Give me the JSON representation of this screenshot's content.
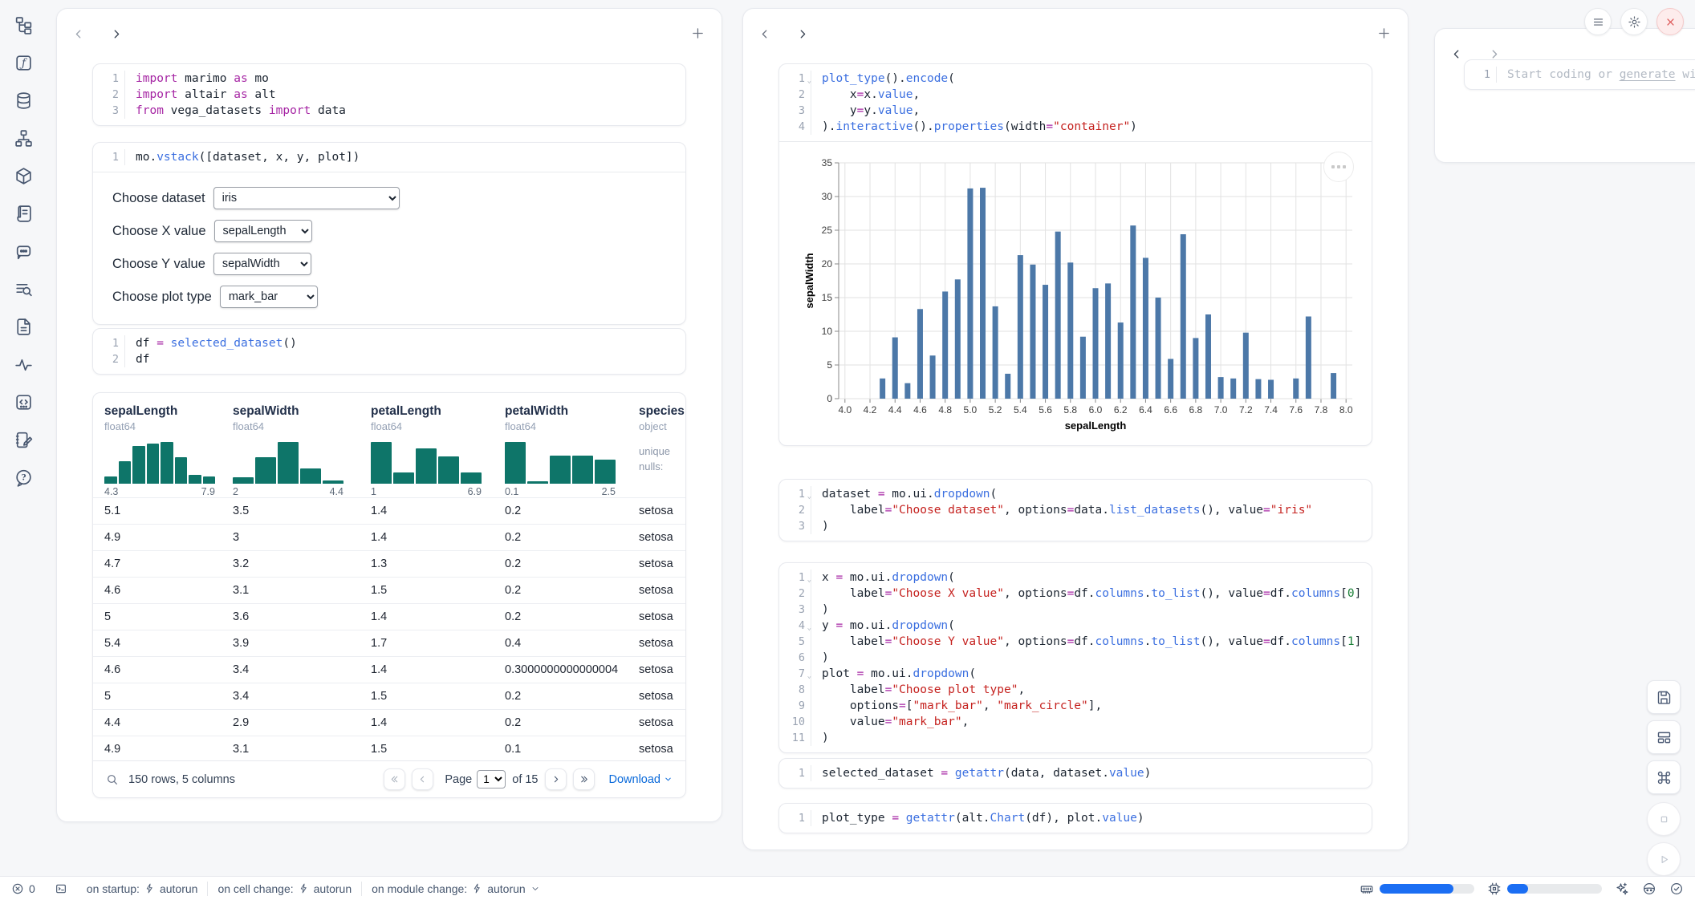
{
  "colors": {
    "hist_teal": "#0e7569",
    "chart_bar_blue": "#4c78a8",
    "link_blue": "#0969da",
    "progress_blue": "#1b6ef3"
  },
  "sidebar": {
    "icons": [
      "file-explorer",
      "functions",
      "datasources",
      "dependency-graph",
      "packages",
      "logs",
      "ai-chat",
      "outline-search",
      "documentation",
      "tracing",
      "snippets",
      "scratchpad",
      "help"
    ]
  },
  "left_panel": {
    "cells": [
      {
        "lines": [
          "import marimo as mo",
          "import altair as alt",
          "from vega_datasets import data"
        ],
        "folds": []
      },
      {
        "lines": [
          "mo.vstack([dataset, x, y, plot])"
        ],
        "folds": []
      },
      {
        "lines": [
          "df = selected_dataset()",
          "df"
        ],
        "folds": []
      }
    ],
    "controls": [
      {
        "label": "Choose dataset",
        "value": "iris",
        "wide": true
      },
      {
        "label": "Choose X value",
        "value": "sepalLength",
        "wide": false
      },
      {
        "label": "Choose Y value",
        "value": "sepalWidth",
        "wide": false
      },
      {
        "label": "Choose plot type",
        "value": "mark_bar",
        "wide": false
      }
    ],
    "table": {
      "columns": [
        {
          "name": "sepalLength",
          "dtype": "float64",
          "hist": [
            0.16,
            0.5,
            0.86,
            0.9,
            0.94,
            0.6,
            0.2,
            0.16
          ],
          "min": "4.3",
          "max": "7.9"
        },
        {
          "name": "sepalWidth",
          "dtype": "float64",
          "hist": [
            0.15,
            0.6,
            0.95,
            0.35,
            0.07
          ],
          "min": "2",
          "max": "4.4"
        },
        {
          "name": "petalLength",
          "dtype": "float64",
          "hist": [
            0.95,
            0.25,
            0.8,
            0.62,
            0.25
          ],
          "min": "1",
          "max": "6.9"
        },
        {
          "name": "petalWidth",
          "dtype": "float64",
          "hist": [
            0.92,
            0.05,
            0.62,
            0.62,
            0.52
          ],
          "min": "0.1",
          "max": "2.5"
        },
        {
          "name": "species",
          "dtype": "object",
          "meta": [
            "unique",
            "nulls:"
          ]
        }
      ],
      "rows": [
        [
          "5.1",
          "3.5",
          "1.4",
          "0.2",
          "setosa"
        ],
        [
          "4.9",
          "3",
          "1.4",
          "0.2",
          "setosa"
        ],
        [
          "4.7",
          "3.2",
          "1.3",
          "0.2",
          "setosa"
        ],
        [
          "4.6",
          "3.1",
          "1.5",
          "0.2",
          "setosa"
        ],
        [
          "5",
          "3.6",
          "1.4",
          "0.2",
          "setosa"
        ],
        [
          "5.4",
          "3.9",
          "1.7",
          "0.4",
          "setosa"
        ],
        [
          "4.6",
          "3.4",
          "1.4",
          "0.3000000000000004",
          "setosa"
        ],
        [
          "5",
          "3.4",
          "1.5",
          "0.2",
          "setosa"
        ],
        [
          "4.4",
          "2.9",
          "1.4",
          "0.2",
          "setosa"
        ],
        [
          "4.9",
          "3.1",
          "1.5",
          "0.1",
          "setosa"
        ]
      ],
      "footer": {
        "summary": "150 rows, 5 columns",
        "page_label": "Page",
        "page_value": "1",
        "of_label": "of 15",
        "download_label": "Download"
      }
    }
  },
  "middle_panel": {
    "cells": [
      {
        "lines": [
          "plot_type().encode(",
          "    x=x.value,",
          "    y=y.value,",
          ").interactive().properties(width=\"container\")"
        ],
        "folds": [
          0
        ]
      },
      {
        "lines": [
          "dataset = mo.ui.dropdown(",
          "    label=\"Choose dataset\", options=data.list_datasets(), value=\"iris\"",
          ")"
        ],
        "folds": [
          0
        ]
      },
      {
        "lines": [
          "x = mo.ui.dropdown(",
          "    label=\"Choose X value\", options=df.columns.to_list(), value=df.columns[0]",
          ")",
          "y = mo.ui.dropdown(",
          "    label=\"Choose Y value\", options=df.columns.to_list(), value=df.columns[1]",
          ")",
          "plot = mo.ui.dropdown(",
          "    label=\"Choose plot type\",",
          "    options=[\"mark_bar\", \"mark_circle\"],",
          "    value=\"mark_bar\",",
          ")"
        ],
        "folds": [
          0,
          3,
          6
        ]
      },
      {
        "lines": [
          "selected_dataset = getattr(data, dataset.value)"
        ],
        "folds": []
      },
      {
        "lines": [
          "plot_type = getattr(alt.Chart(df), plot.value)"
        ],
        "folds": []
      }
    ]
  },
  "chart_data": {
    "type": "bar",
    "title": "",
    "xlabel": "sepalLength",
    "ylabel": "sepalWidth",
    "x_domain": [
      3.95,
      8.05
    ],
    "y_domain": [
      0,
      35
    ],
    "x_ticks": [
      4.0,
      4.2,
      4.4,
      4.6,
      4.8,
      5.0,
      5.2,
      5.4,
      5.6,
      5.8,
      6.0,
      6.2,
      6.4,
      6.6,
      6.8,
      7.0,
      7.2,
      7.4,
      7.6,
      7.8,
      8.0
    ],
    "y_ticks": [
      0,
      5,
      10,
      15,
      20,
      25,
      30,
      35
    ],
    "grid": true,
    "bar_color": "#4c78a8",
    "x": [
      4.3,
      4.4,
      4.5,
      4.6,
      4.7,
      4.8,
      4.9,
      5.0,
      5.1,
      5.2,
      5.3,
      5.4,
      5.5,
      5.6,
      5.7,
      5.8,
      5.9,
      6.0,
      6.1,
      6.2,
      6.3,
      6.4,
      6.5,
      6.6,
      6.7,
      6.8,
      6.9,
      7.0,
      7.1,
      7.2,
      7.3,
      7.4,
      7.6,
      7.7,
      7.9
    ],
    "y": [
      3.0,
      9.1,
      2.3,
      13.3,
      6.4,
      15.9,
      17.7,
      31.2,
      31.3,
      13.7,
      3.7,
      21.3,
      19.9,
      16.9,
      24.8,
      20.2,
      9.2,
      16.4,
      17.1,
      11.3,
      25.7,
      20.9,
      15.0,
      5.9,
      24.4,
      9.0,
      12.5,
      3.2,
      3.0,
      9.8,
      2.9,
      2.8,
      3.0,
      12.2,
      3.8
    ]
  },
  "right_panel": {
    "line_number": "1",
    "placeholder_pre": "Start coding or ",
    "placeholder_link": "generate",
    "placeholder_post": " with AI"
  },
  "status_bar": {
    "error_count": "0",
    "items": [
      {
        "label": "on startup:",
        "value": "autorun",
        "chevron": false
      },
      {
        "label": "on cell change:",
        "value": "autorun",
        "chevron": false
      },
      {
        "label": "on module change:",
        "value": "autorun",
        "chevron": true
      }
    ],
    "memory_percent": 78,
    "cpu_percent": 22
  }
}
